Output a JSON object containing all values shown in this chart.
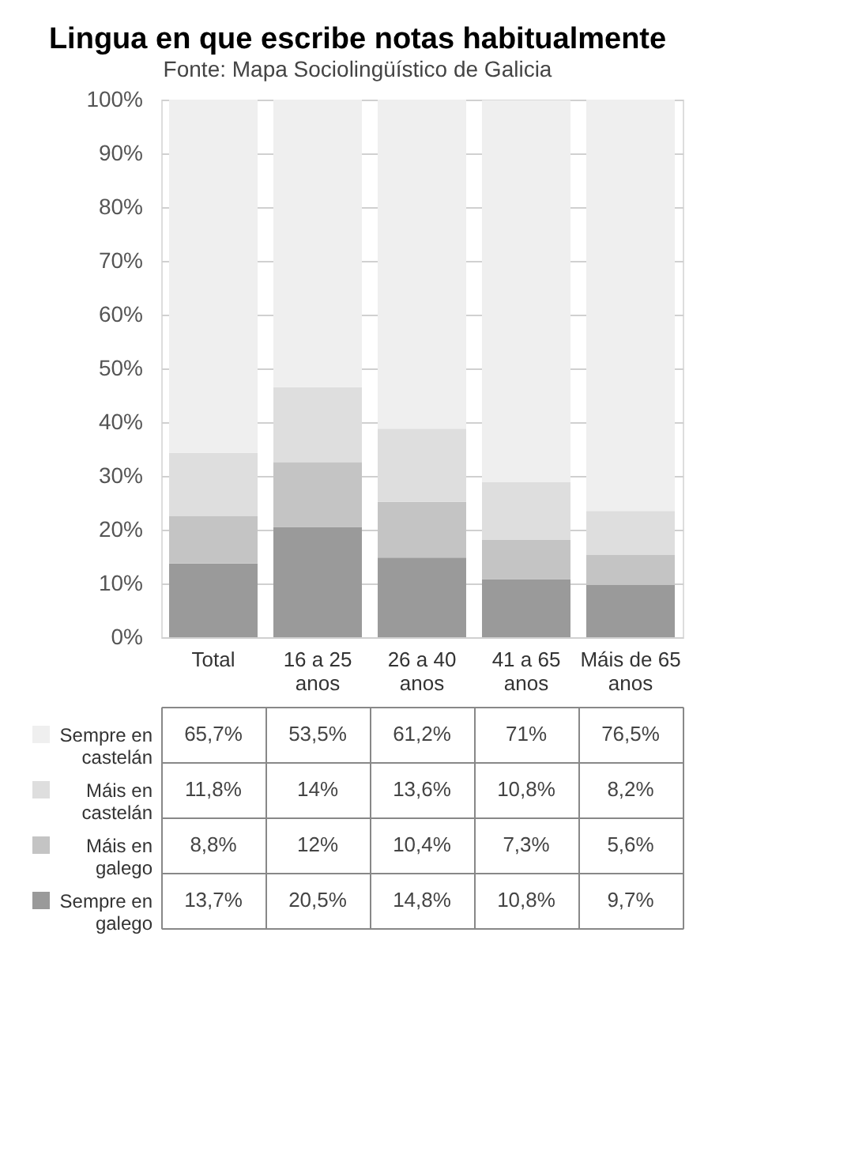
{
  "chart_data": {
    "type": "bar",
    "title": "Lingua en que escribe notas habitualmente",
    "subtitle": "Fonte: Mapa Sociolingüístico de Galicia",
    "categories": [
      "Total",
      "16 a 25\nanos",
      "26 a 40\nanos",
      "41 a 65\nanos",
      "Máis de 65\nanos"
    ],
    "stacked": true,
    "series": [
      {
        "name": "Sempre en\ngalego",
        "color": "#9a9a9a",
        "values": [
          13.7,
          20.5,
          14.8,
          10.8,
          9.7
        ],
        "value_labels": [
          "13,7%",
          "20,5%",
          "14,8%",
          "10,8%",
          "9,7%"
        ]
      },
      {
        "name": "Máis en\ngalego",
        "color": "#c4c4c4",
        "values": [
          8.8,
          12,
          10.4,
          7.3,
          5.6
        ],
        "value_labels": [
          "8,8%",
          "12%",
          "10,4%",
          "7,3%",
          "5,6%"
        ]
      },
      {
        "name": "Máis en\ncastelán",
        "color": "#dedede",
        "values": [
          11.8,
          14,
          13.6,
          10.8,
          8.2
        ],
        "value_labels": [
          "11,8%",
          "14%",
          "13,6%",
          "10,8%",
          "8,2%"
        ]
      },
      {
        "name": "Sempre en\ncastelán",
        "color": "#efefef",
        "values": [
          65.7,
          53.5,
          61.2,
          71,
          76.5
        ],
        "value_labels": [
          "65,7%",
          "53,5%",
          "61,2%",
          "71%",
          "76,5%"
        ]
      }
    ],
    "ylim": [
      0,
      100
    ],
    "yticks": [
      {
        "value": 0,
        "label": "0%"
      },
      {
        "value": 10,
        "label": "10%"
      },
      {
        "value": 20,
        "label": "20%"
      },
      {
        "value": 30,
        "label": "30%"
      },
      {
        "value": 40,
        "label": "40%"
      },
      {
        "value": 50,
        "label": "50%"
      },
      {
        "value": 60,
        "label": "60%"
      },
      {
        "value": 70,
        "label": "70%"
      },
      {
        "value": 80,
        "label": "80%"
      },
      {
        "value": 90,
        "label": "90%"
      },
      {
        "value": 100,
        "label": "100%"
      }
    ],
    "grid": "y",
    "legend": "bottom"
  }
}
